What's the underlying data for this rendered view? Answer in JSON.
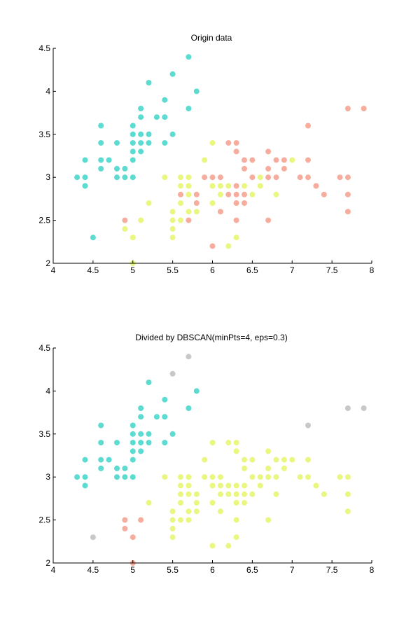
{
  "colors": {
    "cyan": "#5cdbd0",
    "salmon": "#f7ad9d",
    "yellow": "#e9f781",
    "gray": "#c8c8c8"
  },
  "chart_data": [
    {
      "type": "scatter",
      "title": "Origin data",
      "xlim": [
        4,
        8
      ],
      "ylim": [
        2,
        4.5
      ],
      "xticks": [
        "4",
        "4.5",
        "5",
        "5.5",
        "6",
        "6.5",
        "7",
        "7.5",
        "8"
      ],
      "yticks": [
        "2",
        "2.5",
        "3",
        "3.5",
        "4",
        "4.5"
      ],
      "grid": false,
      "series": [
        {
          "color": "cyan",
          "points": [
            [
              4.3,
              3.0
            ],
            [
              4.4,
              3.2
            ],
            [
              4.4,
              3.0
            ],
            [
              4.4,
              2.9
            ],
            [
              4.5,
              2.3
            ],
            [
              4.6,
              3.6
            ],
            [
              4.6,
              3.4
            ],
            [
              4.6,
              3.2
            ],
            [
              4.6,
              3.1
            ],
            [
              4.7,
              3.2
            ],
            [
              4.8,
              3.4
            ],
            [
              4.8,
              3.1
            ],
            [
              4.8,
              3.0
            ],
            [
              4.9,
              3.1
            ],
            [
              4.9,
              3.0
            ],
            [
              5.0,
              3.6
            ],
            [
              5.0,
              3.5
            ],
            [
              5.0,
              3.4
            ],
            [
              5.0,
              3.3
            ],
            [
              5.0,
              3.2
            ],
            [
              5.0,
              3.0
            ],
            [
              5.1,
              3.8
            ],
            [
              5.1,
              3.7
            ],
            [
              5.1,
              3.5
            ],
            [
              5.1,
              3.4
            ],
            [
              5.1,
              3.3
            ],
            [
              5.2,
              4.1
            ],
            [
              5.2,
              3.5
            ],
            [
              5.2,
              3.4
            ],
            [
              5.3,
              3.7
            ],
            [
              5.4,
              3.9
            ],
            [
              5.4,
              3.7
            ],
            [
              5.4,
              3.4
            ],
            [
              5.5,
              4.2
            ],
            [
              5.5,
              3.5
            ],
            [
              5.7,
              4.4
            ],
            [
              5.7,
              3.8
            ],
            [
              5.8,
              4.0
            ]
          ]
        },
        {
          "color": "salmon",
          "points": [
            [
              4.9,
              2.5
            ],
            [
              5.6,
              2.8
            ],
            [
              5.7,
              2.5
            ],
            [
              5.8,
              2.8
            ],
            [
              5.8,
              2.7
            ],
            [
              5.9,
              3.0
            ],
            [
              6.0,
              3.0
            ],
            [
              6.0,
              2.2
            ],
            [
              6.1,
              3.0
            ],
            [
              6.1,
              2.6
            ],
            [
              6.2,
              3.4
            ],
            [
              6.2,
              2.8
            ],
            [
              6.3,
              3.4
            ],
            [
              6.3,
              3.3
            ],
            [
              6.3,
              2.9
            ],
            [
              6.3,
              2.8
            ],
            [
              6.3,
              2.7
            ],
            [
              6.3,
              2.5
            ],
            [
              6.4,
              3.2
            ],
            [
              6.4,
              3.1
            ],
            [
              6.4,
              2.8
            ],
            [
              6.4,
              2.7
            ],
            [
              6.5,
              3.2
            ],
            [
              6.5,
              3.0
            ],
            [
              6.7,
              3.3
            ],
            [
              6.7,
              3.1
            ],
            [
              6.7,
              3.0
            ],
            [
              6.7,
              2.5
            ],
            [
              6.8,
              3.2
            ],
            [
              6.8,
              3.0
            ],
            [
              6.9,
              3.2
            ],
            [
              6.9,
              3.1
            ],
            [
              7.1,
              3.0
            ],
            [
              7.2,
              3.6
            ],
            [
              7.2,
              3.2
            ],
            [
              7.2,
              3.0
            ],
            [
              7.3,
              2.9
            ],
            [
              7.4,
              2.8
            ],
            [
              7.6,
              3.0
            ],
            [
              7.7,
              3.8
            ],
            [
              7.7,
              3.0
            ],
            [
              7.7,
              2.8
            ],
            [
              7.7,
              2.6
            ],
            [
              7.9,
              3.8
            ]
          ]
        },
        {
          "color": "yellow",
          "points": [
            [
              4.9,
              2.4
            ],
            [
              5.0,
              2.3
            ],
            [
              5.0,
              2.0
            ],
            [
              5.1,
              2.5
            ],
            [
              5.2,
              2.7
            ],
            [
              5.4,
              3.0
            ],
            [
              5.5,
              2.6
            ],
            [
              5.5,
              2.5
            ],
            [
              5.5,
              2.4
            ],
            [
              5.5,
              2.3
            ],
            [
              5.6,
              3.0
            ],
            [
              5.6,
              2.9
            ],
            [
              5.6,
              2.7
            ],
            [
              5.6,
              2.5
            ],
            [
              5.7,
              3.0
            ],
            [
              5.7,
              2.9
            ],
            [
              5.7,
              2.8
            ],
            [
              5.7,
              2.6
            ],
            [
              5.8,
              2.6
            ],
            [
              5.9,
              3.2
            ],
            [
              6.0,
              3.4
            ],
            [
              6.0,
              2.9
            ],
            [
              6.0,
              2.7
            ],
            [
              6.1,
              2.9
            ],
            [
              6.1,
              2.8
            ],
            [
              6.2,
              2.9
            ],
            [
              6.2,
              2.2
            ],
            [
              6.3,
              2.3
            ],
            [
              6.4,
              2.9
            ],
            [
              6.5,
              2.8
            ],
            [
              6.6,
              3.0
            ],
            [
              6.6,
              2.9
            ],
            [
              6.8,
              2.8
            ],
            [
              7.0,
              3.2
            ]
          ]
        }
      ]
    },
    {
      "type": "scatter",
      "title": "Divided by DBSCAN(minPts=4, eps=0.3)",
      "xlim": [
        4,
        8
      ],
      "ylim": [
        2,
        4.5
      ],
      "xticks": [
        "4",
        "4.5",
        "5",
        "5.5",
        "6",
        "6.5",
        "7",
        "7.5",
        "8"
      ],
      "yticks": [
        "2",
        "2.5",
        "3",
        "3.5",
        "4",
        "4.5"
      ],
      "grid": false,
      "series": [
        {
          "color": "cyan",
          "points": [
            [
              4.3,
              3.0
            ],
            [
              4.4,
              3.2
            ],
            [
              4.4,
              3.0
            ],
            [
              4.4,
              2.9
            ],
            [
              4.6,
              3.6
            ],
            [
              4.6,
              3.4
            ],
            [
              4.6,
              3.2
            ],
            [
              4.6,
              3.1
            ],
            [
              4.7,
              3.2
            ],
            [
              4.8,
              3.4
            ],
            [
              4.8,
              3.1
            ],
            [
              4.8,
              3.0
            ],
            [
              4.9,
              3.1
            ],
            [
              4.9,
              3.0
            ],
            [
              5.0,
              3.6
            ],
            [
              5.0,
              3.5
            ],
            [
              5.0,
              3.4
            ],
            [
              5.0,
              3.3
            ],
            [
              5.0,
              3.2
            ],
            [
              5.0,
              3.0
            ],
            [
              5.1,
              3.8
            ],
            [
              5.1,
              3.7
            ],
            [
              5.1,
              3.5
            ],
            [
              5.1,
              3.4
            ],
            [
              5.1,
              3.3
            ],
            [
              5.2,
              4.1
            ],
            [
              5.2,
              3.5
            ],
            [
              5.2,
              3.4
            ],
            [
              5.3,
              3.7
            ],
            [
              5.4,
              3.9
            ],
            [
              5.4,
              3.7
            ],
            [
              5.4,
              3.4
            ],
            [
              5.5,
              3.5
            ],
            [
              5.7,
              3.8
            ],
            [
              5.8,
              4.0
            ]
          ]
        },
        {
          "color": "salmon",
          "points": [
            [
              4.9,
              2.5
            ],
            [
              4.9,
              2.4
            ],
            [
              5.0,
              2.3
            ],
            [
              5.0,
              2.0
            ],
            [
              5.1,
              2.5
            ]
          ]
        },
        {
          "color": "yellow",
          "points": [
            [
              5.2,
              2.7
            ],
            [
              5.4,
              3.0
            ],
            [
              5.5,
              2.6
            ],
            [
              5.5,
              2.5
            ],
            [
              5.5,
              2.4
            ],
            [
              5.5,
              2.3
            ],
            [
              5.6,
              3.0
            ],
            [
              5.6,
              2.9
            ],
            [
              5.6,
              2.8
            ],
            [
              5.6,
              2.7
            ],
            [
              5.6,
              2.5
            ],
            [
              5.7,
              3.0
            ],
            [
              5.7,
              2.9
            ],
            [
              5.7,
              2.8
            ],
            [
              5.7,
              2.6
            ],
            [
              5.7,
              2.5
            ],
            [
              5.8,
              2.8
            ],
            [
              5.8,
              2.7
            ],
            [
              5.8,
              2.6
            ],
            [
              5.9,
              3.2
            ],
            [
              5.9,
              3.0
            ],
            [
              6.0,
              3.4
            ],
            [
              6.0,
              3.0
            ],
            [
              6.0,
              2.9
            ],
            [
              6.0,
              2.7
            ],
            [
              6.0,
              2.2
            ],
            [
              6.1,
              3.0
            ],
            [
              6.1,
              2.9
            ],
            [
              6.1,
              2.8
            ],
            [
              6.1,
              2.6
            ],
            [
              6.2,
              3.4
            ],
            [
              6.2,
              2.9
            ],
            [
              6.2,
              2.8
            ],
            [
              6.2,
              2.2
            ],
            [
              6.3,
              3.4
            ],
            [
              6.3,
              3.3
            ],
            [
              6.3,
              2.9
            ],
            [
              6.3,
              2.8
            ],
            [
              6.3,
              2.7
            ],
            [
              6.3,
              2.5
            ],
            [
              6.3,
              2.3
            ],
            [
              6.4,
              3.2
            ],
            [
              6.4,
              3.1
            ],
            [
              6.4,
              2.9
            ],
            [
              6.4,
              2.8
            ],
            [
              6.4,
              2.7
            ],
            [
              6.5,
              3.2
            ],
            [
              6.5,
              3.0
            ],
            [
              6.5,
              2.8
            ],
            [
              6.6,
              3.0
            ],
            [
              6.6,
              2.9
            ],
            [
              6.7,
              3.3
            ],
            [
              6.7,
              3.1
            ],
            [
              6.7,
              3.0
            ],
            [
              6.7,
              2.5
            ],
            [
              6.8,
              3.2
            ],
            [
              6.8,
              3.0
            ],
            [
              6.8,
              2.8
            ],
            [
              6.9,
              3.2
            ],
            [
              6.9,
              3.1
            ],
            [
              7.0,
              3.2
            ],
            [
              7.1,
              3.0
            ],
            [
              7.2,
              3.2
            ],
            [
              7.2,
              3.0
            ],
            [
              7.3,
              2.9
            ],
            [
              7.4,
              2.8
            ],
            [
              7.6,
              3.0
            ],
            [
              7.7,
              3.0
            ],
            [
              7.7,
              2.8
            ],
            [
              7.7,
              2.6
            ]
          ]
        },
        {
          "color": "gray",
          "points": [
            [
              4.5,
              2.3
            ],
            [
              5.5,
              4.2
            ],
            [
              5.7,
              4.4
            ],
            [
              7.2,
              3.6
            ],
            [
              7.7,
              3.8
            ],
            [
              7.9,
              3.8
            ]
          ]
        }
      ]
    }
  ]
}
